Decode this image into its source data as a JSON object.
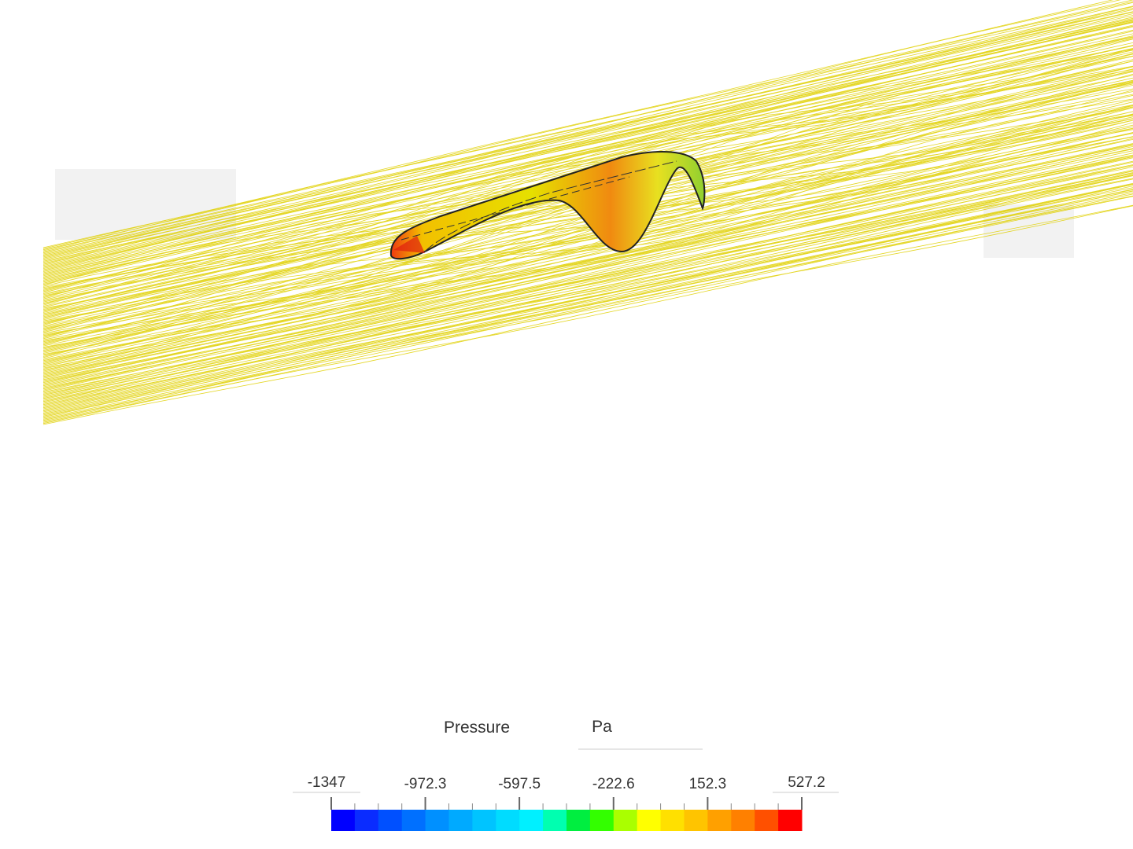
{
  "legend": {
    "title": "Pressure",
    "unit": "Pa",
    "ticks": [
      -1347,
      -972.3,
      -597.5,
      -222.6,
      152.3,
      527.2
    ],
    "colors": [
      "#0000ff",
      "#0a2cff",
      "#0050ff",
      "#0070ff",
      "#0090ff",
      "#00aaff",
      "#00c4ff",
      "#00dcff",
      "#00f0ff",
      "#00ffb0",
      "#00ee40",
      "#33ff00",
      "#aaff00",
      "#ffff00",
      "#ffe000",
      "#ffc400",
      "#ffa000",
      "#ff8000",
      "#ff5000",
      "#ff0000"
    ]
  }
}
